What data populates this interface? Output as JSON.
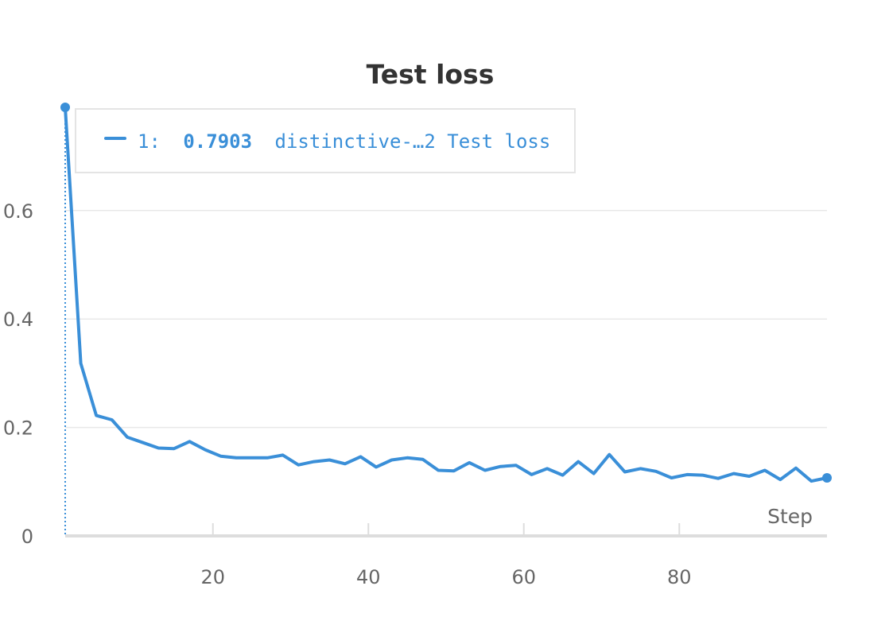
{
  "chart_data": {
    "type": "line",
    "title": "Test loss",
    "xlabel": "Step",
    "ylabel": "",
    "xlim": [
      1,
      99
    ],
    "ylim": [
      0,
      0.7903
    ],
    "x_ticks": [
      20,
      40,
      60,
      80
    ],
    "y_ticks": [
      0,
      0.2,
      0.4,
      0.6
    ],
    "y_tick_labels": [
      "0",
      "0.2",
      "0.4",
      "0.6"
    ],
    "grid": "horizontal",
    "colors": {
      "series": "#3a8fd8",
      "grid": "#e8e8e8",
      "axis": "#dddddd",
      "text": "#666666",
      "title": "#333333",
      "legend_border": "#e4e4e4"
    },
    "legend": {
      "index": "1:",
      "value": "0.7903",
      "label": "distinctive-…2 Test loss",
      "position": "top-left"
    },
    "series": [
      {
        "name": "distinctive-…2 Test loss",
        "x": [
          1,
          3,
          5,
          7,
          9,
          11,
          13,
          15,
          17,
          19,
          21,
          23,
          25,
          27,
          29,
          31,
          33,
          35,
          37,
          39,
          41,
          43,
          45,
          47,
          49,
          51,
          53,
          55,
          57,
          59,
          61,
          63,
          65,
          67,
          69,
          71,
          73,
          75,
          77,
          79,
          81,
          83,
          85,
          87,
          89,
          91,
          93,
          95,
          97,
          99
        ],
        "values": [
          0.7903,
          0.318,
          0.222,
          0.214,
          0.182,
          0.172,
          0.162,
          0.161,
          0.174,
          0.159,
          0.147,
          0.144,
          0.144,
          0.144,
          0.149,
          0.131,
          0.137,
          0.14,
          0.133,
          0.146,
          0.127,
          0.14,
          0.144,
          0.141,
          0.121,
          0.12,
          0.135,
          0.121,
          0.128,
          0.13,
          0.113,
          0.124,
          0.112,
          0.137,
          0.115,
          0.15,
          0.118,
          0.124,
          0.119,
          0.107,
          0.113,
          0.112,
          0.106,
          0.115,
          0.11,
          0.121,
          0.104,
          0.125,
          0.101,
          0.107
        ]
      }
    ]
  }
}
